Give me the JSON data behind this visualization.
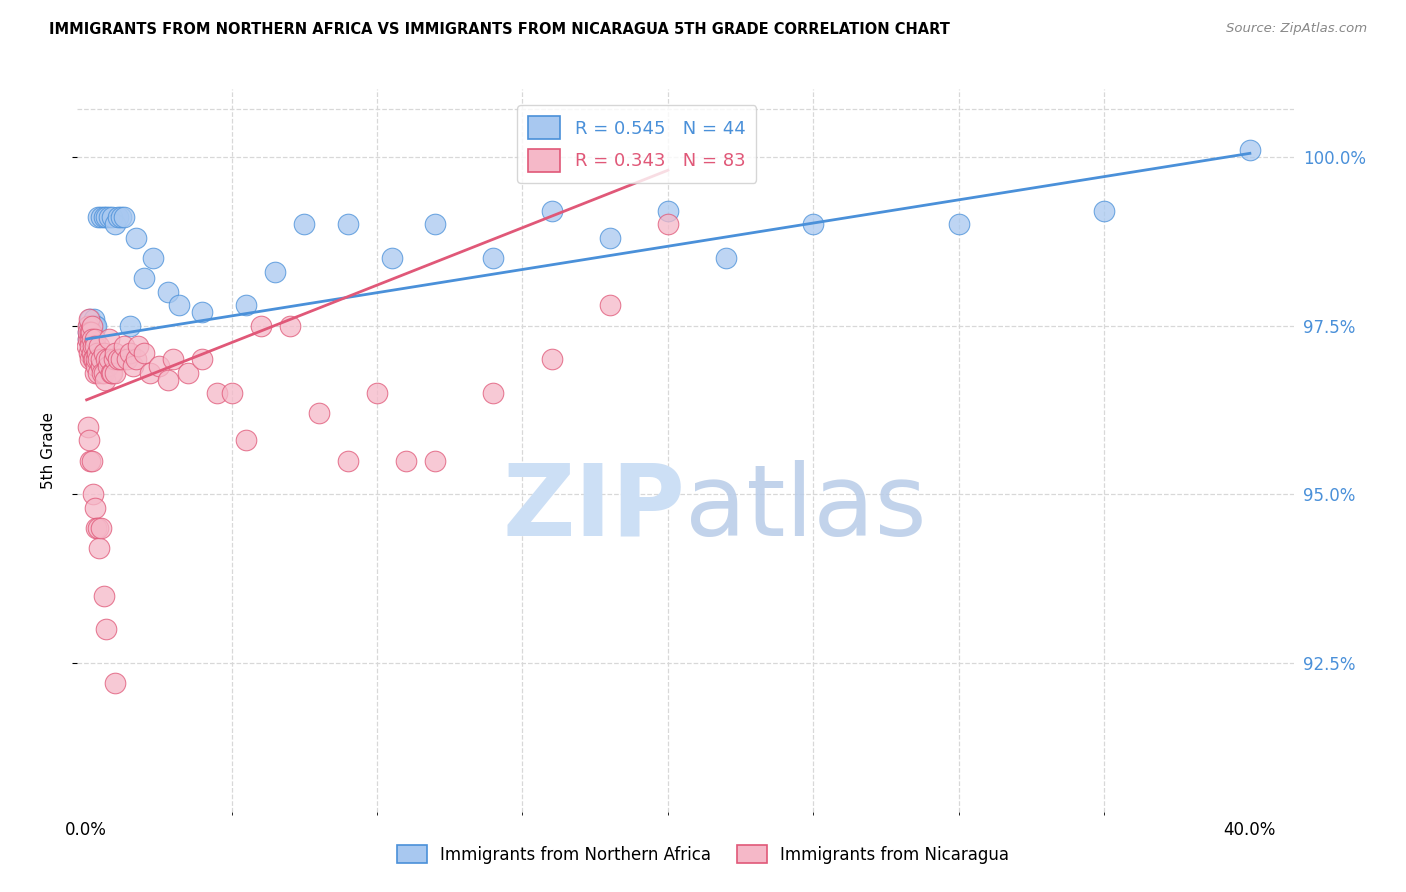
{
  "title": "IMMIGRANTS FROM NORTHERN AFRICA VS IMMIGRANTS FROM NICARAGUA 5TH GRADE CORRELATION CHART",
  "source": "Source: ZipAtlas.com",
  "ylabel": "5th Grade",
  "ytick_values": [
    92.5,
    95.0,
    97.5,
    100.0
  ],
  "ymin": 90.3,
  "ymax": 101.0,
  "xmin": -0.3,
  "xmax": 41.5,
  "legend_blue": "R = 0.545   N = 44",
  "legend_pink": "R = 0.343   N = 83",
  "blue_color": "#a8c8f0",
  "pink_color": "#f5b8c8",
  "line_blue": "#4a90d9",
  "line_pink": "#e05878",
  "grid_color": "#d8d8d8",
  "background_color": "#ffffff",
  "blue_x": [
    0.05,
    0.08,
    0.1,
    0.12,
    0.15,
    0.18,
    0.2,
    0.22,
    0.25,
    0.28,
    0.3,
    0.35,
    0.4,
    0.5,
    0.6,
    0.7,
    0.8,
    0.9,
    1.0,
    1.1,
    1.2,
    1.3,
    1.5,
    1.7,
    2.0,
    2.3,
    2.8,
    3.2,
    4.0,
    5.5,
    6.5,
    7.5,
    9.0,
    10.5,
    12.0,
    14.0,
    16.0,
    18.0,
    20.0,
    22.0,
    25.0,
    30.0,
    35.0,
    40.0
  ],
  "blue_y": [
    97.4,
    97.3,
    97.5,
    97.6,
    97.4,
    97.3,
    97.5,
    97.5,
    97.4,
    97.6,
    97.5,
    97.5,
    99.1,
    99.1,
    99.1,
    99.1,
    99.1,
    99.1,
    99.0,
    99.1,
    99.1,
    99.1,
    97.5,
    98.8,
    98.2,
    98.5,
    98.0,
    97.8,
    97.7,
    97.8,
    98.3,
    99.0,
    99.0,
    98.5,
    99.0,
    98.5,
    99.2,
    98.8,
    99.2,
    98.5,
    99.0,
    99.0,
    99.2,
    100.1
  ],
  "pink_x": [
    0.02,
    0.05,
    0.07,
    0.08,
    0.1,
    0.1,
    0.12,
    0.13,
    0.15,
    0.15,
    0.18,
    0.2,
    0.2,
    0.22,
    0.25,
    0.25,
    0.28,
    0.3,
    0.3,
    0.32,
    0.35,
    0.35,
    0.38,
    0.4,
    0.4,
    0.45,
    0.5,
    0.5,
    0.55,
    0.6,
    0.6,
    0.65,
    0.7,
    0.75,
    0.8,
    0.8,
    0.85,
    0.9,
    0.95,
    1.0,
    1.0,
    1.1,
    1.2,
    1.3,
    1.4,
    1.5,
    1.6,
    1.7,
    1.8,
    2.0,
    2.2,
    2.5,
    2.8,
    3.0,
    3.5,
    4.0,
    4.5,
    5.0,
    5.5,
    6.0,
    7.0,
    8.0,
    9.0,
    10.0,
    11.0,
    12.0,
    14.0,
    16.0,
    18.0,
    20.0,
    0.08,
    0.1,
    0.15,
    0.2,
    0.25,
    0.3,
    0.35,
    0.4,
    0.45,
    0.5,
    0.6,
    0.7,
    1.0
  ],
  "pink_y": [
    97.2,
    97.5,
    97.3,
    97.4,
    97.6,
    97.1,
    97.3,
    97.4,
    97.2,
    97.0,
    97.4,
    97.5,
    97.3,
    97.1,
    97.2,
    97.0,
    97.0,
    97.3,
    96.8,
    97.2,
    96.9,
    97.0,
    97.1,
    96.8,
    97.0,
    97.2,
    96.9,
    97.0,
    96.8,
    97.1,
    96.8,
    96.7,
    97.0,
    96.9,
    97.3,
    97.0,
    96.8,
    96.8,
    97.0,
    97.1,
    96.8,
    97.0,
    97.0,
    97.2,
    97.0,
    97.1,
    96.9,
    97.0,
    97.2,
    97.1,
    96.8,
    96.9,
    96.7,
    97.0,
    96.8,
    97.0,
    96.5,
    96.5,
    95.8,
    97.5,
    97.5,
    96.2,
    95.5,
    96.5,
    95.5,
    95.5,
    96.5,
    97.0,
    97.8,
    99.0,
    96.0,
    95.8,
    95.5,
    95.5,
    95.0,
    94.8,
    94.5,
    94.5,
    94.2,
    94.5,
    93.5,
    93.0,
    92.2
  ],
  "blue_trendline_x": [
    0.02,
    40.0
  ],
  "blue_trendline_y": [
    97.3,
    100.05
  ],
  "pink_trendline_x": [
    0.02,
    20.0
  ],
  "pink_trendline_y": [
    96.4,
    99.8
  ]
}
